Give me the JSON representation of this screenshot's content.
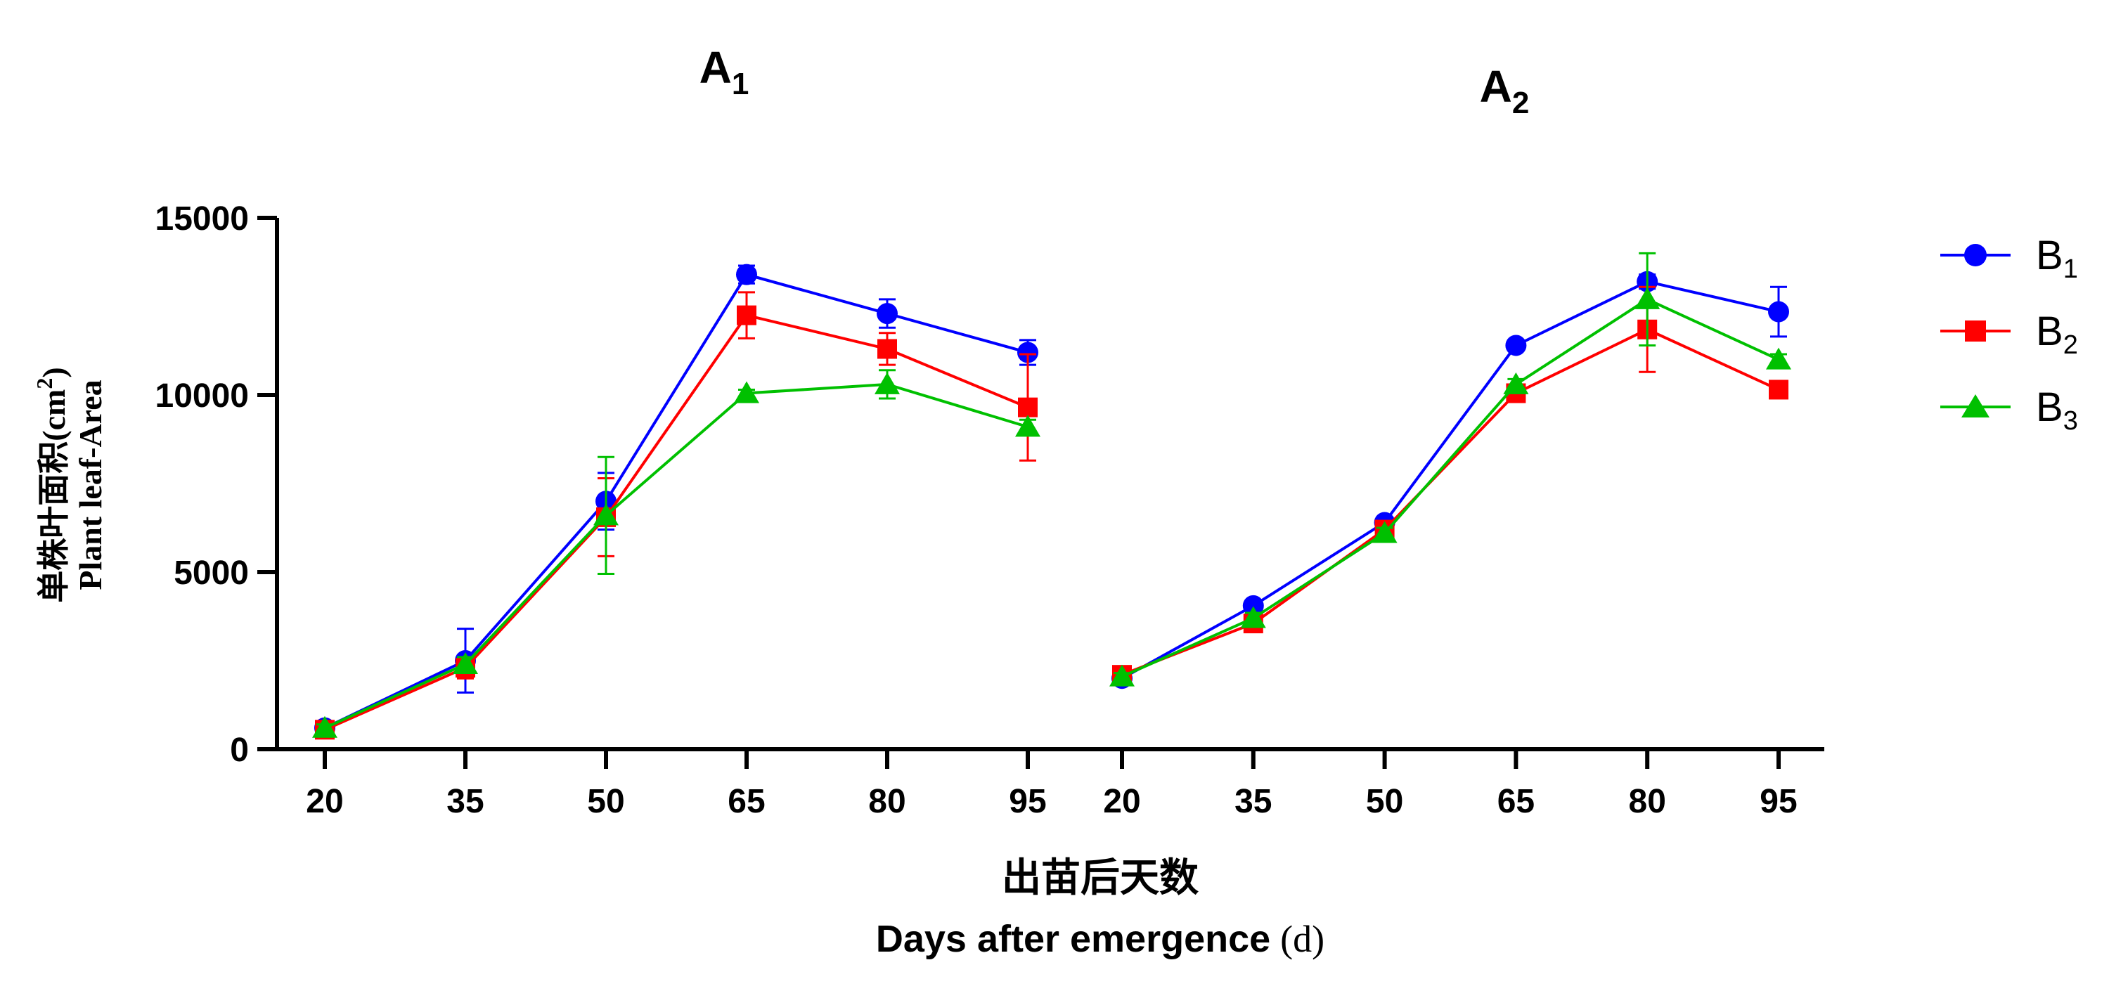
{
  "colors": {
    "axis": "#000000",
    "B1": "#0000ff",
    "B2": "#ff0000",
    "B3": "#00c000"
  },
  "chart_data": [
    {
      "type": "line",
      "title": "A",
      "title_subscript": "1",
      "x": [
        20,
        35,
        50,
        65,
        80,
        95
      ],
      "ylim": [
        0,
        15000
      ],
      "yticks": [
        0,
        5000,
        10000,
        15000
      ],
      "series": [
        {
          "name": "B",
          "subscript": "1",
          "marker": "circle",
          "values": [
            600,
            2500,
            7000,
            13400,
            12300,
            11200
          ],
          "errors": [
            100,
            900,
            800,
            250,
            400,
            350
          ]
        },
        {
          "name": "B",
          "subscript": "2",
          "marker": "square",
          "values": [
            550,
            2300,
            6550,
            12250,
            11300,
            9650
          ],
          "errors": [
            100,
            300,
            1100,
            650,
            450,
            1500
          ]
        },
        {
          "name": "B",
          "subscript": "3",
          "marker": "triangle",
          "values": [
            600,
            2400,
            6600,
            10050,
            10300,
            9100
          ],
          "errors": [
            100,
            200,
            1650,
            100,
            400,
            200
          ]
        }
      ]
    },
    {
      "type": "line",
      "title": "A",
      "title_subscript": "2",
      "x": [
        20,
        35,
        50,
        65,
        80,
        95
      ],
      "ylim": [
        0,
        15000
      ],
      "series": [
        {
          "name": "B",
          "subscript": "1",
          "marker": "circle",
          "values": [
            2000,
            4050,
            6400,
            11400,
            13200,
            12350
          ],
          "errors": [
            100,
            150,
            150,
            150,
            200,
            700
          ]
        },
        {
          "name": "B",
          "subscript": "2",
          "marker": "square",
          "values": [
            2100,
            3550,
            6200,
            10050,
            11850,
            10150
          ],
          "errors": [
            100,
            150,
            150,
            150,
            1200,
            150
          ]
        },
        {
          "name": "B",
          "subscript": "3",
          "marker": "triangle",
          "values": [
            2050,
            3700,
            6100,
            10300,
            12700,
            11000
          ],
          "errors": [
            100,
            150,
            150,
            150,
            1300,
            150
          ]
        }
      ]
    }
  ],
  "ylabel_cn": "单株叶面积",
  "ylabel_unit_open": "(cm",
  "ylabel_unit_sup": "2",
  "ylabel_unit_close": ")",
  "ylabel_en": "Plant leaf-Area",
  "xlabel_cn": "出苗后天数",
  "xlabel_en": "Days after emergence",
  "xlabel_unit": "(d)",
  "legend_position": "right"
}
